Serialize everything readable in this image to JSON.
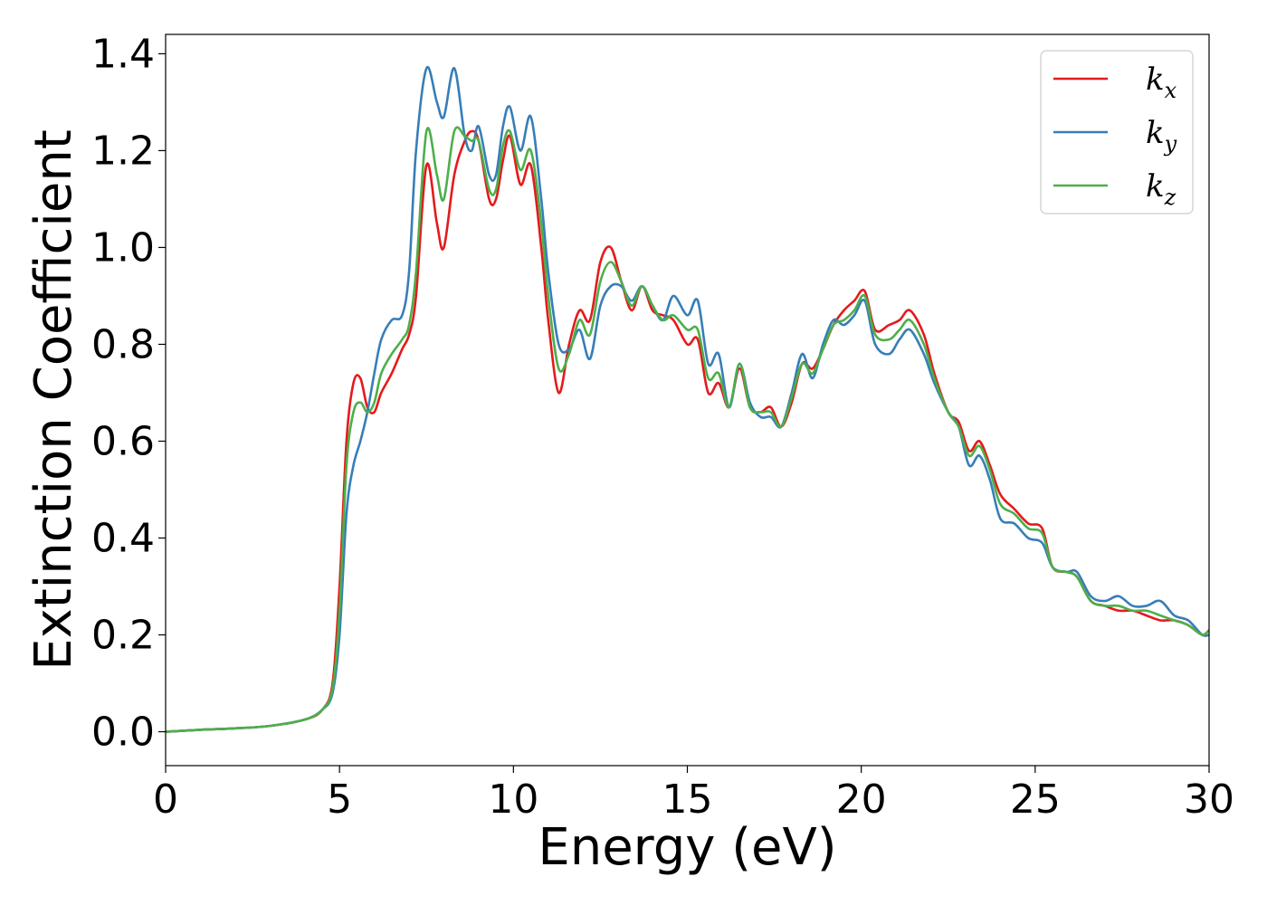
{
  "chart_data": {
    "type": "line",
    "title": "",
    "xlabel": "Energy (eV)",
    "ylabel": "Extinction Coefficient",
    "xlim": [
      0,
      30
    ],
    "ylim": [
      -0.07,
      1.44
    ],
    "xticks": [
      0,
      5,
      10,
      15,
      20,
      25,
      30
    ],
    "xtick_labels": [
      "0",
      "5",
      "10",
      "15",
      "20",
      "25",
      "30"
    ],
    "yticks": [
      0.0,
      0.2,
      0.4,
      0.6,
      0.8,
      1.0,
      1.2,
      1.4
    ],
    "ytick_labels": [
      "0.0",
      "0.2",
      "0.4",
      "0.6",
      "0.8",
      "1.0",
      "1.2",
      "1.4"
    ],
    "grid": false,
    "legend_position": "top-right",
    "series": [
      {
        "name": "k",
        "subscript": "x",
        "color": "#e41a1c",
        "x": [
          0,
          1,
          2,
          3,
          4,
          4.5,
          4.8,
          5.0,
          5.2,
          5.4,
          5.6,
          5.8,
          6.0,
          6.2,
          6.5,
          6.8,
          7.0,
          7.2,
          7.5,
          7.8,
          8.0,
          8.3,
          8.6,
          8.8,
          9.0,
          9.3,
          9.5,
          9.7,
          9.9,
          10.2,
          10.5,
          10.8,
          11.0,
          11.3,
          11.6,
          11.9,
          12.2,
          12.5,
          12.8,
          13.1,
          13.4,
          13.7,
          14.0,
          14.3,
          14.6,
          15.0,
          15.3,
          15.6,
          15.9,
          16.2,
          16.5,
          16.8,
          17.1,
          17.4,
          17.7,
          18.0,
          18.3,
          18.6,
          18.9,
          19.2,
          19.5,
          19.8,
          20.1,
          20.4,
          20.8,
          21.1,
          21.4,
          21.8,
          22.1,
          22.5,
          22.8,
          23.1,
          23.4,
          23.7,
          24.0,
          24.4,
          24.8,
          25.2,
          25.5,
          25.9,
          26.2,
          26.6,
          27.0,
          27.4,
          27.8,
          28.2,
          28.6,
          29.0,
          29.4,
          29.8,
          30.0
        ],
        "y": [
          0.0,
          0.004,
          0.007,
          0.012,
          0.025,
          0.045,
          0.1,
          0.3,
          0.6,
          0.72,
          0.73,
          0.67,
          0.66,
          0.7,
          0.74,
          0.79,
          0.82,
          0.9,
          1.17,
          1.05,
          1.0,
          1.15,
          1.22,
          1.24,
          1.22,
          1.1,
          1.1,
          1.18,
          1.23,
          1.13,
          1.17,
          1.0,
          0.85,
          0.7,
          0.8,
          0.87,
          0.85,
          0.97,
          1.0,
          0.93,
          0.87,
          0.92,
          0.87,
          0.86,
          0.85,
          0.8,
          0.81,
          0.7,
          0.72,
          0.67,
          0.75,
          0.67,
          0.66,
          0.67,
          0.63,
          0.68,
          0.76,
          0.75,
          0.79,
          0.84,
          0.87,
          0.89,
          0.91,
          0.83,
          0.84,
          0.85,
          0.87,
          0.82,
          0.74,
          0.66,
          0.64,
          0.58,
          0.6,
          0.55,
          0.49,
          0.46,
          0.43,
          0.42,
          0.34,
          0.33,
          0.32,
          0.27,
          0.26,
          0.25,
          0.25,
          0.24,
          0.23,
          0.23,
          0.22,
          0.2,
          0.21
        ]
      },
      {
        "name": "k",
        "subscript": "y",
        "color": "#377eb8",
        "x": [
          0,
          1,
          2,
          3,
          4,
          4.5,
          4.8,
          5.0,
          5.2,
          5.4,
          5.6,
          5.8,
          6.0,
          6.2,
          6.5,
          6.8,
          7.0,
          7.2,
          7.5,
          7.8,
          8.0,
          8.3,
          8.6,
          8.8,
          9.0,
          9.3,
          9.5,
          9.7,
          9.9,
          10.2,
          10.5,
          10.8,
          11.0,
          11.3,
          11.6,
          11.9,
          12.2,
          12.5,
          12.8,
          13.1,
          13.4,
          13.7,
          14.0,
          14.3,
          14.6,
          15.0,
          15.3,
          15.6,
          15.9,
          16.2,
          16.5,
          16.8,
          17.1,
          17.4,
          17.7,
          18.0,
          18.3,
          18.6,
          18.9,
          19.2,
          19.5,
          19.8,
          20.1,
          20.4,
          20.8,
          21.1,
          21.4,
          21.8,
          22.1,
          22.5,
          22.8,
          23.1,
          23.4,
          23.7,
          24.0,
          24.4,
          24.8,
          25.2,
          25.5,
          25.9,
          26.2,
          26.6,
          27.0,
          27.4,
          27.8,
          28.2,
          28.6,
          29.0,
          29.4,
          29.8,
          30.0
        ],
        "y": [
          0.0,
          0.004,
          0.007,
          0.012,
          0.025,
          0.045,
          0.08,
          0.2,
          0.45,
          0.55,
          0.6,
          0.66,
          0.74,
          0.81,
          0.85,
          0.86,
          0.95,
          1.2,
          1.37,
          1.3,
          1.27,
          1.37,
          1.23,
          1.2,
          1.25,
          1.15,
          1.15,
          1.25,
          1.29,
          1.2,
          1.27,
          1.1,
          0.95,
          0.8,
          0.79,
          0.83,
          0.77,
          0.88,
          0.92,
          0.92,
          0.89,
          0.92,
          0.88,
          0.85,
          0.9,
          0.86,
          0.89,
          0.76,
          0.78,
          0.67,
          0.76,
          0.68,
          0.65,
          0.65,
          0.63,
          0.7,
          0.78,
          0.73,
          0.8,
          0.85,
          0.84,
          0.86,
          0.89,
          0.8,
          0.78,
          0.81,
          0.83,
          0.78,
          0.72,
          0.66,
          0.63,
          0.55,
          0.57,
          0.52,
          0.44,
          0.43,
          0.4,
          0.39,
          0.34,
          0.33,
          0.33,
          0.28,
          0.27,
          0.28,
          0.26,
          0.26,
          0.27,
          0.24,
          0.23,
          0.2,
          0.2
        ]
      },
      {
        "name": "k",
        "subscript": "z",
        "color": "#4daf4a",
        "x": [
          0,
          1,
          2,
          3,
          4,
          4.5,
          4.8,
          5.0,
          5.2,
          5.4,
          5.6,
          5.8,
          6.0,
          6.2,
          6.5,
          6.8,
          7.0,
          7.2,
          7.5,
          7.8,
          8.0,
          8.3,
          8.6,
          8.8,
          9.0,
          9.3,
          9.5,
          9.7,
          9.9,
          10.2,
          10.5,
          10.8,
          11.0,
          11.3,
          11.6,
          11.9,
          12.2,
          12.5,
          12.8,
          13.1,
          13.4,
          13.7,
          14.0,
          14.3,
          14.6,
          15.0,
          15.3,
          15.6,
          15.9,
          16.2,
          16.5,
          16.8,
          17.1,
          17.4,
          17.7,
          18.0,
          18.3,
          18.6,
          18.9,
          19.2,
          19.5,
          19.8,
          20.1,
          20.4,
          20.8,
          21.1,
          21.4,
          21.8,
          22.1,
          22.5,
          22.8,
          23.1,
          23.4,
          23.7,
          24.0,
          24.4,
          24.8,
          25.2,
          25.5,
          25.9,
          26.2,
          26.6,
          27.0,
          27.4,
          27.8,
          28.2,
          28.6,
          29.0,
          29.4,
          29.8,
          30.0
        ],
        "y": [
          0.0,
          0.004,
          0.007,
          0.012,
          0.025,
          0.045,
          0.09,
          0.25,
          0.55,
          0.66,
          0.68,
          0.66,
          0.68,
          0.74,
          0.78,
          0.81,
          0.84,
          0.95,
          1.24,
          1.15,
          1.1,
          1.24,
          1.23,
          1.22,
          1.22,
          1.12,
          1.12,
          1.21,
          1.24,
          1.16,
          1.2,
          1.05,
          0.9,
          0.75,
          0.78,
          0.85,
          0.82,
          0.93,
          0.97,
          0.93,
          0.88,
          0.92,
          0.88,
          0.85,
          0.86,
          0.83,
          0.83,
          0.73,
          0.74,
          0.67,
          0.76,
          0.67,
          0.66,
          0.66,
          0.63,
          0.69,
          0.76,
          0.74,
          0.79,
          0.84,
          0.85,
          0.87,
          0.9,
          0.82,
          0.81,
          0.83,
          0.85,
          0.8,
          0.73,
          0.66,
          0.63,
          0.57,
          0.59,
          0.54,
          0.47,
          0.45,
          0.42,
          0.41,
          0.34,
          0.33,
          0.32,
          0.27,
          0.26,
          0.26,
          0.25,
          0.25,
          0.24,
          0.23,
          0.22,
          0.2,
          0.21
        ]
      }
    ]
  }
}
